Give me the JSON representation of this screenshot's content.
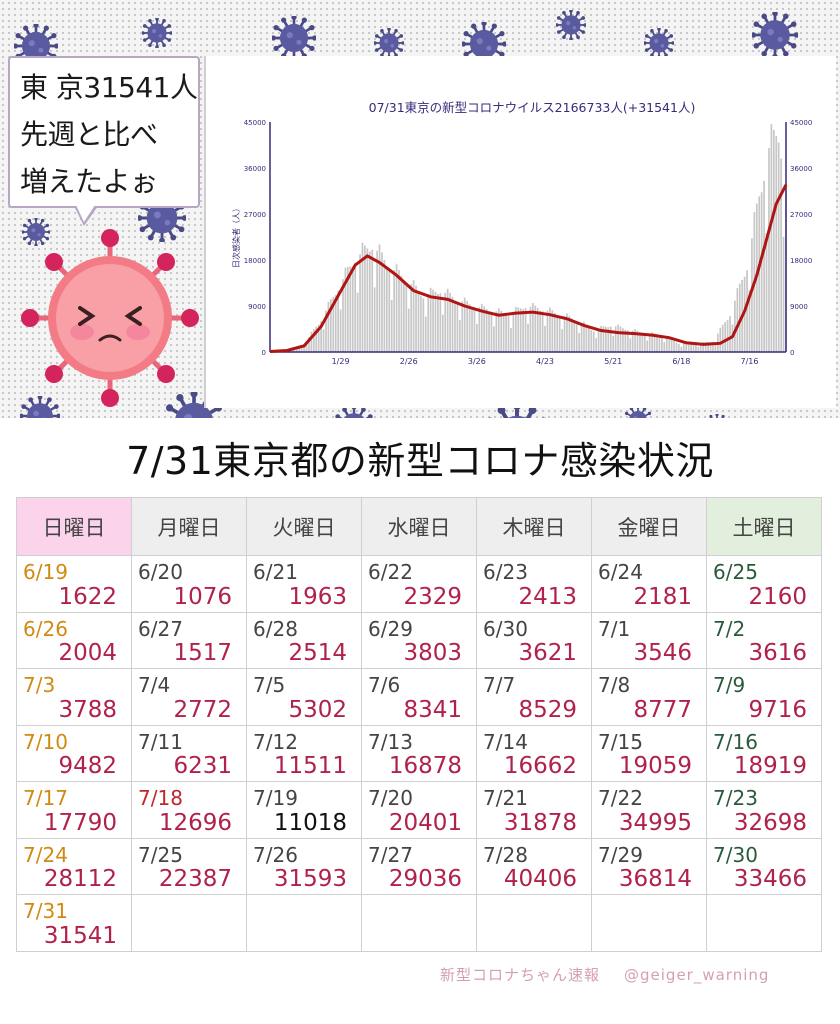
{
  "bubble": {
    "line1": "東 京31541人",
    "line2": "先週と比べ",
    "line3": "増えたよぉ"
  },
  "chart_data": {
    "type": "bar",
    "title": "07/31東京の新型コロナウイルス2166733人(+31541人)",
    "ylabel": "日次感染者（人）",
    "ylim": [
      0,
      45000
    ],
    "yticks": [
      "0",
      "9000",
      "18000",
      "27000",
      "36000",
      "45000"
    ],
    "xticks": [
      "1/29",
      "2/26",
      "3/26",
      "4/23",
      "5/21",
      "6/18",
      "7/16"
    ],
    "x_range": [
      "2021-12-31",
      "2022-07-31"
    ],
    "series": [],
    "shape_points": [
      [
        0,
        100
      ],
      [
        7,
        300
      ],
      [
        14,
        1500
      ],
      [
        21,
        6000
      ],
      [
        28,
        12000
      ],
      [
        35,
        17500
      ],
      [
        42,
        20000
      ],
      [
        49,
        16000
      ],
      [
        56,
        13500
      ],
      [
        63,
        10500
      ],
      [
        70,
        11500
      ],
      [
        77,
        9800
      ],
      [
        84,
        8500
      ],
      [
        91,
        7800
      ],
      [
        98,
        7000
      ],
      [
        105,
        8600
      ],
      [
        112,
        8000
      ],
      [
        119,
        7000
      ],
      [
        126,
        6000
      ],
      [
        133,
        4000
      ],
      [
        140,
        5000
      ],
      [
        147,
        4200
      ],
      [
        154,
        3500
      ],
      [
        161,
        3200
      ],
      [
        168,
        1600
      ],
      [
        175,
        1500
      ],
      [
        182,
        2000
      ],
      [
        189,
        7000
      ],
      [
        196,
        16000
      ],
      [
        201,
        29000
      ],
      [
        205,
        38000
      ],
      [
        209,
        41000
      ],
      [
        212,
        31541
      ]
    ],
    "avg_points": [
      [
        0,
        100
      ],
      [
        7,
        300
      ],
      [
        14,
        1200
      ],
      [
        21,
        5000
      ],
      [
        28,
        11000
      ],
      [
        35,
        17000
      ],
      [
        40,
        18800
      ],
      [
        45,
        17500
      ],
      [
        52,
        15000
      ],
      [
        59,
        12000
      ],
      [
        66,
        10800
      ],
      [
        73,
        10300
      ],
      [
        80,
        9000
      ],
      [
        87,
        8000
      ],
      [
        94,
        7200
      ],
      [
        101,
        7600
      ],
      [
        108,
        7800
      ],
      [
        115,
        7300
      ],
      [
        122,
        6500
      ],
      [
        129,
        5200
      ],
      [
        136,
        4200
      ],
      [
        143,
        3800
      ],
      [
        150,
        3600
      ],
      [
        157,
        3300
      ],
      [
        164,
        2800
      ],
      [
        171,
        1800
      ],
      [
        178,
        1500
      ],
      [
        185,
        1700
      ],
      [
        190,
        3000
      ],
      [
        195,
        8000
      ],
      [
        200,
        15000
      ],
      [
        204,
        22000
      ],
      [
        208,
        29000
      ],
      [
        212,
        32700
      ]
    ],
    "colors": {
      "bars": "#c7c7c7",
      "line": "#b01515",
      "axis": "#3a2a7a",
      "title": "#3a2a7a"
    }
  },
  "table": {
    "title": "7/31東京都の新型コロナ感染状況",
    "headers": [
      "日曜日",
      "月曜日",
      "火曜日",
      "水曜日",
      "木曜日",
      "金曜日",
      "土曜日"
    ],
    "rows": [
      [
        {
          "d": "6/19",
          "v": "1622"
        },
        {
          "d": "6/20",
          "v": "1076"
        },
        {
          "d": "6/21",
          "v": "1963"
        },
        {
          "d": "6/22",
          "v": "2329"
        },
        {
          "d": "6/23",
          "v": "2413"
        },
        {
          "d": "6/24",
          "v": "2181"
        },
        {
          "d": "6/25",
          "v": "2160"
        }
      ],
      [
        {
          "d": "6/26",
          "v": "2004"
        },
        {
          "d": "6/27",
          "v": "1517"
        },
        {
          "d": "6/28",
          "v": "2514"
        },
        {
          "d": "6/29",
          "v": "3803"
        },
        {
          "d": "6/30",
          "v": "3621"
        },
        {
          "d": "7/1",
          "v": "3546"
        },
        {
          "d": "7/2",
          "v": "3616"
        }
      ],
      [
        {
          "d": "7/3",
          "v": "3788"
        },
        {
          "d": "7/4",
          "v": "2772"
        },
        {
          "d": "7/5",
          "v": "5302"
        },
        {
          "d": "7/6",
          "v": "8341"
        },
        {
          "d": "7/7",
          "v": "8529"
        },
        {
          "d": "7/8",
          "v": "8777"
        },
        {
          "d": "7/9",
          "v": "9716"
        }
      ],
      [
        {
          "d": "7/10",
          "v": "9482"
        },
        {
          "d": "7/11",
          "v": "6231"
        },
        {
          "d": "7/12",
          "v": "11511"
        },
        {
          "d": "7/13",
          "v": "16878"
        },
        {
          "d": "7/14",
          "v": "16662"
        },
        {
          "d": "7/15",
          "v": "19059"
        },
        {
          "d": "7/16",
          "v": "18919"
        }
      ],
      [
        {
          "d": "7/17",
          "v": "17790"
        },
        {
          "d": "7/18",
          "v": "12696",
          "holiday": true
        },
        {
          "d": "7/19",
          "v": "11018",
          "black": true
        },
        {
          "d": "7/20",
          "v": "20401"
        },
        {
          "d": "7/21",
          "v": "31878"
        },
        {
          "d": "7/22",
          "v": "34995"
        },
        {
          "d": "7/23",
          "v": "32698"
        }
      ],
      [
        {
          "d": "7/24",
          "v": "28112"
        },
        {
          "d": "7/25",
          "v": "22387"
        },
        {
          "d": "7/26",
          "v": "31593"
        },
        {
          "d": "7/27",
          "v": "29036"
        },
        {
          "d": "7/28",
          "v": "40406"
        },
        {
          "d": "7/29",
          "v": "36814"
        },
        {
          "d": "7/30",
          "v": "33466"
        }
      ],
      [
        {
          "d": "7/31",
          "v": "31541"
        },
        null,
        null,
        null,
        null,
        null,
        null
      ]
    ]
  },
  "footer": {
    "brand": "新型コロナちゃん速報",
    "handle": "@geiger_warning"
  }
}
